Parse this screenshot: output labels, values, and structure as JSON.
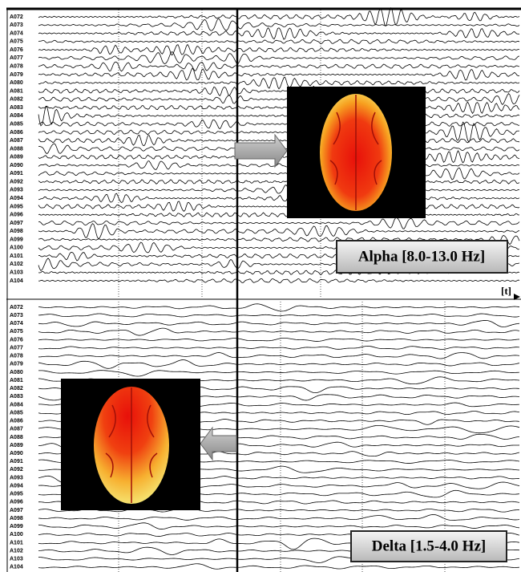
{
  "panels": [
    {
      "channels": [
        "A072",
        "A073",
        "A074",
        "A075",
        "A076",
        "A077",
        "A078",
        "A079",
        "A080",
        "A081",
        "A082",
        "A083",
        "A084",
        "A085",
        "A086",
        "A087",
        "A088",
        "A089",
        "A090",
        "A091",
        "A092",
        "A093",
        "A094",
        "A095",
        "A096",
        "A097",
        "A098",
        "A099",
        "A100",
        "A101",
        "A102",
        "A103",
        "A104"
      ],
      "band_label": "Alpha [8.0-13.0 Hz]"
    },
    {
      "channels": [
        "A072",
        "A073",
        "A074",
        "A075",
        "A076",
        "A077",
        "A078",
        "A079",
        "A080",
        "A081",
        "A082",
        "A083",
        "A084",
        "A085",
        "A086",
        "A087",
        "A088",
        "A089",
        "A090",
        "A091",
        "A092",
        "A093",
        "A094",
        "A095",
        "A096",
        "A097",
        "A098",
        "A099",
        "A100",
        "A101",
        "A102",
        "A103",
        "A104"
      ],
      "band_label": "Delta [1.5-4.0 Hz]"
    }
  ],
  "time_axis_label": "[t]"
}
